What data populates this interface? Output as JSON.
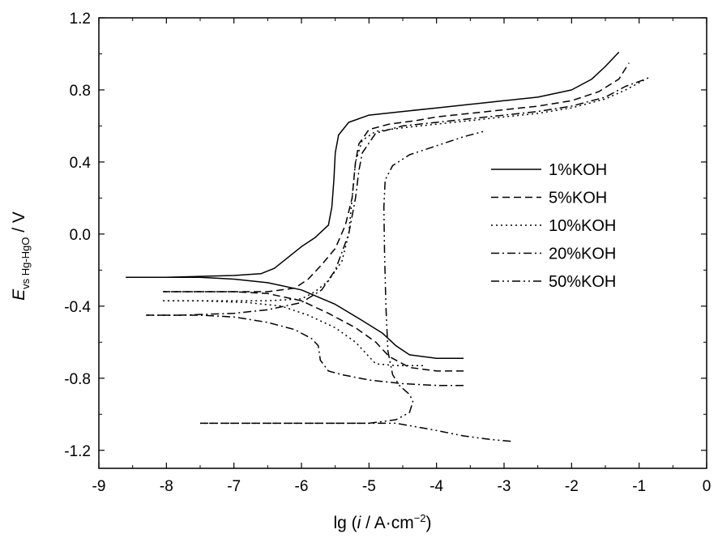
{
  "chart_data": {
    "type": "line",
    "title": "",
    "xlabel": {
      "prefix": "lg (",
      "italic": "i",
      "middle": " / A·cm",
      "sup": "−2",
      "suffix": ")"
    },
    "ylabel": {
      "main": "E",
      "sub": "vs Hg-HgO",
      "suffix": " / V"
    },
    "xlim": [
      -9,
      0
    ],
    "ylim": [
      -1.3,
      1.2
    ],
    "xticks": [
      -9,
      -8,
      -7,
      -6,
      -5,
      -4,
      -3,
      -2,
      -1,
      0
    ],
    "xtick_labels": [
      "-9",
      "-8",
      "-7",
      "-6",
      "-5",
      "-4",
      "-3",
      "-2",
      "-1",
      "0"
    ],
    "yticks": [
      -1.2,
      -0.8,
      -0.4,
      0.0,
      0.4,
      0.8,
      1.2
    ],
    "ytick_labels": [
      "-1.2",
      "-0.8",
      "-0.4",
      "0.0",
      "0.4",
      "0.8",
      "1.2"
    ],
    "grid": false,
    "legend_position": "right-center",
    "series": [
      {
        "name": "1%KOH",
        "dash": "none",
        "cathodic": [
          [
            -3.6,
            -0.69
          ],
          [
            -4.0,
            -0.69
          ],
          [
            -4.4,
            -0.67
          ],
          [
            -4.6,
            -0.62
          ],
          [
            -4.8,
            -0.55
          ],
          [
            -5.1,
            -0.48
          ],
          [
            -5.5,
            -0.39
          ],
          [
            -6.0,
            -0.31
          ],
          [
            -6.5,
            -0.27
          ],
          [
            -7.0,
            -0.25
          ],
          [
            -7.5,
            -0.24
          ],
          [
            -8.0,
            -0.24
          ],
          [
            -8.6,
            -0.24
          ]
        ],
        "anodic": [
          [
            -8.6,
            -0.24
          ],
          [
            -8.0,
            -0.24
          ],
          [
            -7.5,
            -0.235
          ],
          [
            -7.0,
            -0.23
          ],
          [
            -6.6,
            -0.22
          ],
          [
            -6.4,
            -0.19
          ],
          [
            -6.2,
            -0.13
          ],
          [
            -6.0,
            -0.07
          ],
          [
            -5.8,
            -0.02
          ],
          [
            -5.6,
            0.05
          ],
          [
            -5.55,
            0.15
          ],
          [
            -5.52,
            0.3
          ],
          [
            -5.5,
            0.45
          ],
          [
            -5.45,
            0.55
          ],
          [
            -5.3,
            0.62
          ],
          [
            -5.0,
            0.66
          ],
          [
            -4.5,
            0.68
          ],
          [
            -4.0,
            0.7
          ],
          [
            -3.5,
            0.72
          ],
          [
            -3.0,
            0.74
          ],
          [
            -2.5,
            0.76
          ],
          [
            -2.0,
            0.8
          ],
          [
            -1.7,
            0.86
          ],
          [
            -1.5,
            0.93
          ],
          [
            -1.3,
            1.01
          ]
        ]
      },
      {
        "name": "5%KOH",
        "dash": "9,5",
        "cathodic": [
          [
            -3.6,
            -0.76
          ],
          [
            -4.0,
            -0.76
          ],
          [
            -4.4,
            -0.74
          ],
          [
            -4.7,
            -0.68
          ],
          [
            -4.9,
            -0.6
          ],
          [
            -5.2,
            -0.52
          ],
          [
            -5.6,
            -0.44
          ],
          [
            -6.0,
            -0.37
          ],
          [
            -6.5,
            -0.33
          ],
          [
            -7.0,
            -0.32
          ],
          [
            -7.5,
            -0.32
          ],
          [
            -8.05,
            -0.32
          ]
        ],
        "anodic": [
          [
            -8.05,
            -0.32
          ],
          [
            -7.5,
            -0.32
          ],
          [
            -7.0,
            -0.32
          ],
          [
            -6.5,
            -0.32
          ],
          [
            -6.1,
            -0.3
          ],
          [
            -5.9,
            -0.25
          ],
          [
            -5.7,
            -0.17
          ],
          [
            -5.5,
            -0.08
          ],
          [
            -5.35,
            0.05
          ],
          [
            -5.25,
            0.2
          ],
          [
            -5.2,
            0.4
          ],
          [
            -5.15,
            0.5
          ],
          [
            -5.0,
            0.58
          ],
          [
            -4.7,
            0.61
          ],
          [
            -4.3,
            0.63
          ],
          [
            -4.0,
            0.65
          ],
          [
            -3.5,
            0.67
          ],
          [
            -3.0,
            0.69
          ],
          [
            -2.5,
            0.71
          ],
          [
            -2.0,
            0.74
          ],
          [
            -1.6,
            0.79
          ],
          [
            -1.3,
            0.86
          ],
          [
            -1.15,
            0.95
          ]
        ]
      },
      {
        "name": "10%KOH",
        "dash": "2,4",
        "cathodic": [
          [
            -4.2,
            -0.73
          ],
          [
            -4.6,
            -0.73
          ],
          [
            -4.9,
            -0.72
          ],
          [
            -5.0,
            -0.68
          ],
          [
            -5.2,
            -0.6
          ],
          [
            -5.5,
            -0.52
          ],
          [
            -5.9,
            -0.45
          ],
          [
            -6.3,
            -0.4
          ],
          [
            -6.8,
            -0.38
          ],
          [
            -7.5,
            -0.37
          ],
          [
            -8.05,
            -0.37
          ]
        ],
        "anodic": [
          [
            -8.05,
            -0.37
          ],
          [
            -7.5,
            -0.37
          ],
          [
            -7.0,
            -0.37
          ],
          [
            -6.5,
            -0.37
          ],
          [
            -6.0,
            -0.36
          ],
          [
            -5.8,
            -0.32
          ],
          [
            -5.6,
            -0.26
          ],
          [
            -5.4,
            -0.15
          ],
          [
            -5.3,
            0.0
          ],
          [
            -5.25,
            0.2
          ],
          [
            -5.2,
            0.4
          ],
          [
            -5.1,
            0.52
          ],
          [
            -4.9,
            0.57
          ],
          [
            -4.5,
            0.59
          ],
          [
            -4.0,
            0.61
          ],
          [
            -3.5,
            0.63
          ],
          [
            -3.0,
            0.65
          ],
          [
            -2.5,
            0.67
          ],
          [
            -2.0,
            0.7
          ],
          [
            -1.5,
            0.75
          ],
          [
            -1.2,
            0.8
          ],
          [
            -0.85,
            0.87
          ]
        ]
      },
      {
        "name": "20%KOH",
        "dash": "10,4,2,4",
        "cathodic": [
          [
            -3.6,
            -0.84
          ],
          [
            -4.0,
            -0.84
          ],
          [
            -4.5,
            -0.83
          ],
          [
            -5.0,
            -0.81
          ],
          [
            -5.4,
            -0.78
          ],
          [
            -5.6,
            -0.76
          ],
          [
            -5.72,
            -0.7
          ],
          [
            -5.75,
            -0.62
          ],
          [
            -5.85,
            -0.58
          ],
          [
            -6.1,
            -0.53
          ],
          [
            -6.5,
            -0.49
          ],
          [
            -7.0,
            -0.46
          ],
          [
            -7.5,
            -0.45
          ],
          [
            -8.3,
            -0.45
          ]
        ],
        "anodic": [
          [
            -8.3,
            -0.45
          ],
          [
            -7.8,
            -0.45
          ],
          [
            -7.0,
            -0.44
          ],
          [
            -6.5,
            -0.42
          ],
          [
            -6.0,
            -0.38
          ],
          [
            -5.7,
            -0.31
          ],
          [
            -5.5,
            -0.2
          ],
          [
            -5.3,
            0.0
          ],
          [
            -5.2,
            0.2
          ],
          [
            -5.15,
            0.35
          ],
          [
            -5.1,
            0.45
          ],
          [
            -4.9,
            0.56
          ],
          [
            -4.5,
            0.6
          ],
          [
            -4.0,
            0.62
          ],
          [
            -3.5,
            0.64
          ],
          [
            -3.0,
            0.66
          ],
          [
            -2.5,
            0.68
          ],
          [
            -2.0,
            0.71
          ],
          [
            -1.5,
            0.76
          ],
          [
            -1.2,
            0.82
          ],
          [
            -0.9,
            0.86
          ]
        ]
      },
      {
        "name": "50%KOH",
        "dash": "10,4,2,4,2,4",
        "cathodic": [
          [
            -2.9,
            -1.15
          ],
          [
            -3.2,
            -1.14
          ],
          [
            -3.6,
            -1.12
          ],
          [
            -4.0,
            -1.09
          ],
          [
            -4.3,
            -1.07
          ],
          [
            -4.6,
            -1.05
          ],
          [
            -5.0,
            -1.05
          ],
          [
            -5.5,
            -1.05
          ],
          [
            -6.0,
            -1.05
          ],
          [
            -6.5,
            -1.05
          ],
          [
            -7.0,
            -1.05
          ],
          [
            -7.5,
            -1.05
          ]
        ],
        "anodic": [
          [
            -7.5,
            -1.05
          ],
          [
            -7.0,
            -1.05
          ],
          [
            -6.5,
            -1.05
          ],
          [
            -6.0,
            -1.05
          ],
          [
            -5.5,
            -1.05
          ],
          [
            -5.0,
            -1.05
          ],
          [
            -4.6,
            -1.03
          ],
          [
            -4.4,
            -0.99
          ],
          [
            -4.35,
            -0.93
          ],
          [
            -4.4,
            -0.89
          ],
          [
            -4.55,
            -0.84
          ],
          [
            -4.65,
            -0.78
          ],
          [
            -4.72,
            -0.65
          ],
          [
            -4.75,
            -0.4
          ],
          [
            -4.77,
            -0.1
          ],
          [
            -4.78,
            0.15
          ],
          [
            -4.76,
            0.3
          ],
          [
            -4.65,
            0.38
          ],
          [
            -4.4,
            0.44
          ],
          [
            -4.0,
            0.49
          ],
          [
            -3.6,
            0.54
          ],
          [
            -3.3,
            0.57
          ]
        ]
      }
    ]
  }
}
